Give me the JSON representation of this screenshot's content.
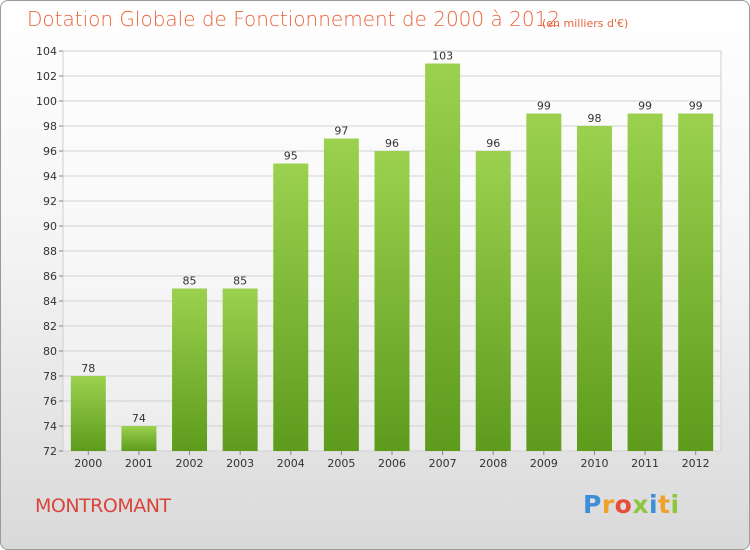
{
  "title": "Dotation Globale de Fonctionnement de 2000 à 2012",
  "subtitle": "(en milliers d'€)",
  "commune": "MONTROMANT",
  "logo_text": "Proxiti",
  "colors": {
    "bar_top": "#9bd14f",
    "bar_bottom": "#5e9b1c",
    "title": "#e8643b",
    "commune": "#d9453b"
  },
  "chart_data": {
    "type": "bar",
    "title": "Dotation Globale de Fonctionnement de 2000 à 2012",
    "categories": [
      "2000",
      "2001",
      "2002",
      "2003",
      "2004",
      "2005",
      "2006",
      "2007",
      "2008",
      "2009",
      "2010",
      "2011",
      "2012"
    ],
    "values": [
      78,
      74,
      85,
      85,
      95,
      97,
      96,
      103,
      96,
      99,
      98,
      99,
      99
    ],
    "ylim": [
      72,
      104
    ],
    "yticks": [
      72,
      74,
      76,
      78,
      80,
      82,
      84,
      86,
      88,
      90,
      92,
      94,
      96,
      98,
      100,
      102,
      104
    ],
    "grid": true
  }
}
